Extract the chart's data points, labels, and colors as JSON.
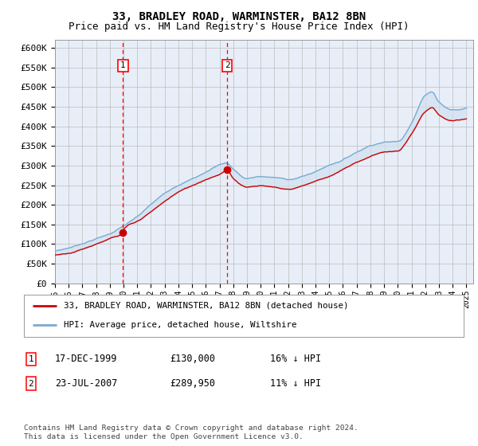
{
  "title": "33, BRADLEY ROAD, WARMINSTER, BA12 8BN",
  "subtitle": "Price paid vs. HM Land Registry's House Price Index (HPI)",
  "ylim": [
    0,
    620000
  ],
  "yticks": [
    0,
    50000,
    100000,
    150000,
    200000,
    250000,
    300000,
    350000,
    400000,
    450000,
    500000,
    550000,
    600000
  ],
  "ytick_labels": [
    "£0",
    "£50K",
    "£100K",
    "£150K",
    "£200K",
    "£250K",
    "£300K",
    "£350K",
    "£400K",
    "£450K",
    "£500K",
    "£550K",
    "£600K"
  ],
  "background_color": "#e8eef8",
  "grid_color": "#bbbbbb",
  "hpi_color": "#7aaad0",
  "sold_color": "#cc0000",
  "shade_color": "#d0e0f0",
  "sale1_date": 1999.96,
  "sale1_price": 130000,
  "sale2_date": 2007.55,
  "sale2_price": 289950,
  "legend_line1": "33, BRADLEY ROAD, WARMINSTER, BA12 8BN (detached house)",
  "legend_line2": "HPI: Average price, detached house, Wiltshire",
  "footnote": "Contains HM Land Registry data © Crown copyright and database right 2024.\nThis data is licensed under the Open Government Licence v3.0.",
  "title_fontsize": 10,
  "subtitle_fontsize": 9
}
